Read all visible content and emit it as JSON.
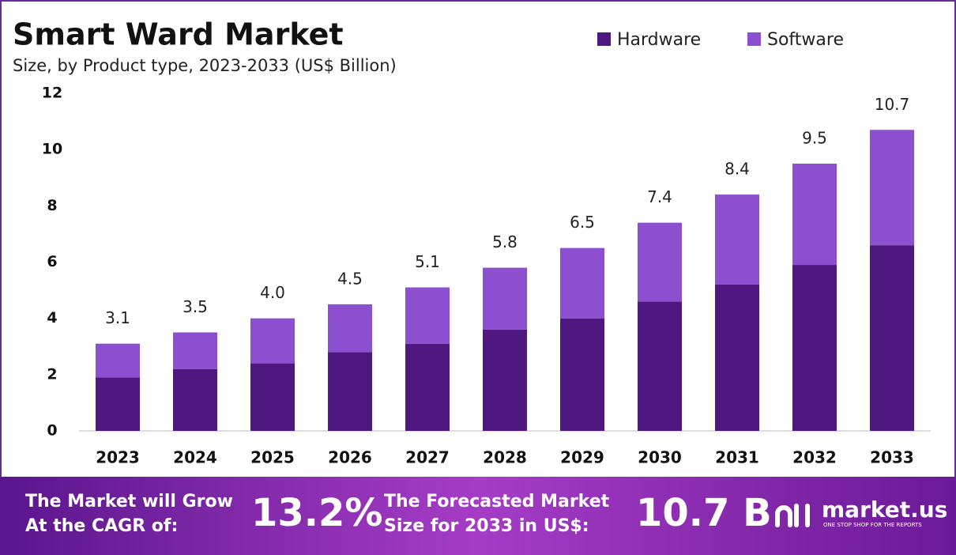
{
  "chart_data": {
    "type": "stacked_bar",
    "title": "Smart Ward Market",
    "subtitle": "Size, by Product type, 2023-2033 (US$ Billion)",
    "categories": [
      "2023",
      "2024",
      "2025",
      "2026",
      "2027",
      "2028",
      "2029",
      "2030",
      "2031",
      "2032",
      "2033"
    ],
    "series": [
      {
        "name": "Hardware",
        "color": "#4f1780",
        "values": [
          1.9,
          2.2,
          2.4,
          2.8,
          3.1,
          3.6,
          4.0,
          4.6,
          5.2,
          5.9,
          6.6
        ]
      },
      {
        "name": "Software",
        "color": "#8c4fd0",
        "values": [
          1.2,
          1.3,
          1.6,
          1.7,
          2.0,
          2.2,
          2.5,
          2.8,
          3.2,
          3.6,
          4.1
        ]
      }
    ],
    "totals": [
      3.1,
      3.5,
      4.0,
      4.5,
      5.1,
      5.8,
      6.5,
      7.4,
      8.4,
      9.5,
      10.7
    ],
    "total_labels": [
      "3.1",
      "3.5",
      "4.0",
      "4.5",
      "5.1",
      "5.8",
      "6.5",
      "7.4",
      "8.4",
      "9.5",
      "10.7"
    ],
    "ylim": [
      0,
      12
    ],
    "yticks": [
      0,
      2,
      4,
      6,
      8,
      10,
      12
    ],
    "grid": false,
    "legend": "top-right"
  },
  "banner": {
    "cagr_text": [
      "The Market will Grow",
      "At the CAGR of:"
    ],
    "cagr_value": "13.2%",
    "forecast_text": [
      "The Forecasted Market",
      "Size for 2033 in US$:"
    ],
    "forecast_value": "10.7 B",
    "logo": "market.us",
    "tagline": "ONE STOP SHOP FOR THE REPORTS"
  }
}
